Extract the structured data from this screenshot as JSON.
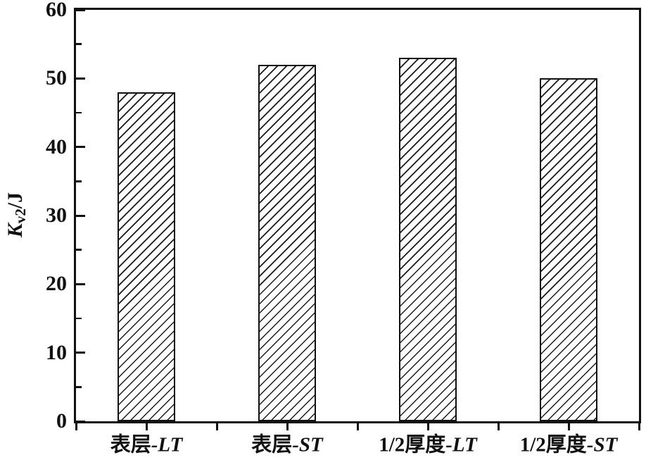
{
  "chart_data": {
    "type": "bar",
    "title": "",
    "categories": [
      "表层-LT",
      "表层-ST",
      "1/2厚度-LT",
      "1/2厚度-ST"
    ],
    "values": [
      48,
      52,
      53,
      50
    ],
    "xlabel": "",
    "ylabel": "Kv2/J",
    "ylabel_parts": {
      "symbol": "K",
      "subscript": "v2",
      "rest": "/J"
    },
    "ylim": [
      0,
      60
    ],
    "y_major_ticks": [
      0,
      10,
      20,
      30,
      40,
      50,
      60
    ],
    "y_minor_ticks": [
      5,
      15,
      25,
      35,
      45,
      55
    ],
    "x_tick_mode": "centers-and-boundaries",
    "legend": "none",
    "grid": false,
    "bar_fill": "diagonal-hatch-45deg",
    "line_color": "#111111",
    "background": "#ffffff"
  }
}
